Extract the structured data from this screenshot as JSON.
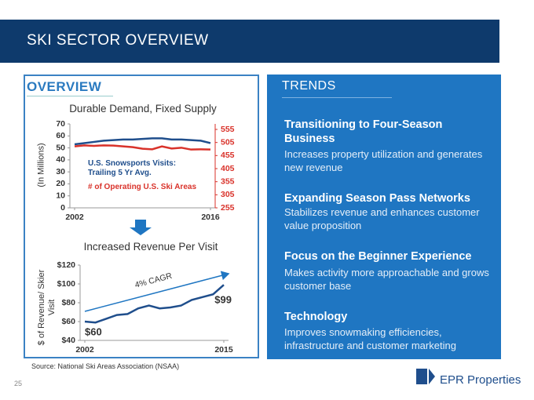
{
  "header": {
    "title": "SKI SECTOR OVERVIEW"
  },
  "overview": {
    "title": "OVERVIEW"
  },
  "trends": {
    "title": "TRENDS",
    "items": [
      {
        "heading": "Transitioning to Four-Season Business",
        "body": "Increases property utilization and generates new revenue"
      },
      {
        "heading": "Expanding Season Pass Networks",
        "body": "Stabilizes revenue and enhances customer value proposition"
      },
      {
        "heading": "Focus on the Beginner Experience",
        "body": "Makes activity more approachable and grows customer base"
      },
      {
        "heading": "Technology",
        "body": "Improves snowmaking efficiencies, infrastructure and customer marketing"
      }
    ]
  },
  "source": "Source: National Ski Areas Association (NSAA)",
  "page_number": "25",
  "logo": "EPR Properties",
  "chart_data": [
    {
      "type": "line",
      "title": "Durable Demand, Fixed Supply",
      "y_label": "(In Millions)",
      "x": [
        2002,
        2003,
        2004,
        2005,
        2006,
        2007,
        2008,
        2009,
        2010,
        2011,
        2012,
        2013,
        2014,
        2015,
        2016
      ],
      "xlim": [
        2002,
        2016
      ],
      "xticks": [
        2002,
        2016
      ],
      "ylim": [
        0,
        70
      ],
      "yticks": [
        0,
        10,
        20,
        30,
        40,
        50,
        60,
        70
      ],
      "y2lim": [
        255,
        576
      ],
      "y2ticks": [
        255,
        305,
        355,
        405,
        455,
        505,
        555
      ],
      "series": [
        {
          "name": "U.S. Snowsports Visits: Trailing 5 Yr Avg.",
          "color": "#1f4e8c",
          "values": [
            53,
            54,
            55,
            56,
            56.5,
            57,
            57,
            57.5,
            58,
            58,
            57,
            57,
            56.5,
            56,
            54
          ]
        },
        {
          "name": "# of Operating U.S. Ski Areas",
          "color": "#d9322a",
          "axis": "y2",
          "values": [
            490,
            494,
            492,
            494,
            493,
            490,
            487,
            481,
            479,
            490,
            482,
            485,
            478,
            479,
            478
          ]
        }
      ]
    },
    {
      "type": "line",
      "title": "Increased Revenue Per Visit",
      "y_label": "$ of Revenue/ Skier Visit",
      "x": [
        2002,
        2003,
        2004,
        2005,
        2006,
        2007,
        2008,
        2009,
        2010,
        2011,
        2012,
        2013,
        2014,
        2015
      ],
      "xlim": [
        2002,
        2015
      ],
      "xticks": [
        2002,
        2015
      ],
      "ylim": [
        40,
        120
      ],
      "yticks": [
        {
          "value": 40,
          "label": "$40"
        },
        {
          "value": 60,
          "label": "$60"
        },
        {
          "value": 80,
          "label": "$80"
        },
        {
          "value": 100,
          "label": "$100"
        },
        {
          "value": 120,
          "label": "$120"
        }
      ],
      "annotation": "4% CAGR",
      "series": [
        {
          "color": "#1f4e8c",
          "values": [
            60,
            59,
            63,
            67,
            68,
            74,
            77,
            74,
            75,
            77,
            83,
            86,
            89,
            99
          ],
          "value_labels": [
            "$60",
            null,
            null,
            null,
            null,
            null,
            null,
            null,
            null,
            null,
            null,
            null,
            null,
            "$99"
          ]
        }
      ]
    }
  ]
}
